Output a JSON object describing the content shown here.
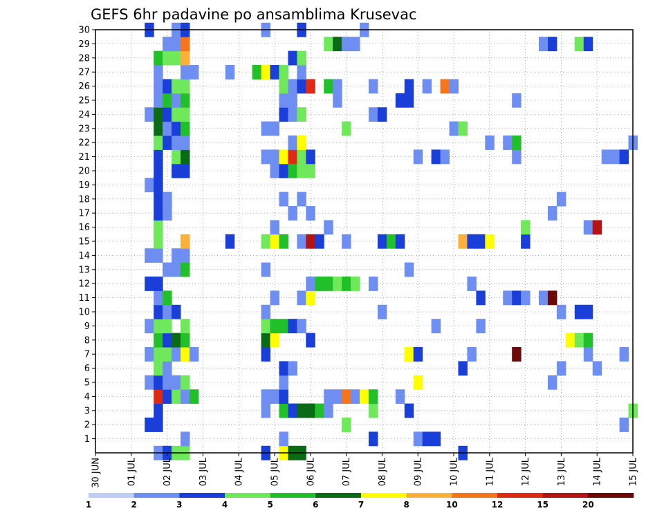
{
  "chart_data": {
    "type": "heatmap",
    "title": "GEFS 6hr padavine po ansamblima Krusevac",
    "x_tick_labels": [
      "30 JUN",
      "01 JUL",
      "02 JUL",
      "03 JUL",
      "04 JUL",
      "05 JUL",
      "06 JUL",
      "07 JUL",
      "08 JUL",
      "09 JUL",
      "10 JUL",
      "11 JUL",
      "12 JUL",
      "13 JUL",
      "14 JUL",
      "15 JUL"
    ],
    "y_tick_labels": [
      "1",
      "2",
      "3",
      "4",
      "5",
      "6",
      "7",
      "8",
      "9",
      "10",
      "11",
      "12",
      "13",
      "14",
      "15",
      "16",
      "17",
      "18",
      "19",
      "20",
      "21",
      "22",
      "23",
      "24",
      "25",
      "26",
      "27",
      "28",
      "29",
      "30"
    ],
    "x_steps_per_day": 4,
    "n_steps": 61,
    "y_range": [
      0,
      30
    ],
    "grid": true,
    "colorbar": {
      "levels": [
        1,
        2,
        3,
        4,
        5,
        6,
        7,
        8,
        10,
        12,
        15,
        20
      ],
      "labels": [
        "1",
        "2",
        "3",
        "4",
        "5",
        "6",
        "7",
        "8",
        "10",
        "12",
        "15",
        "20"
      ],
      "colors": [
        "#bfcdf6",
        "#6f8ef2",
        "#1a3fd9",
        "#6fe85c",
        "#21c02a",
        "#0b6a16",
        "#fefe00",
        "#fbb03a",
        "#f5751a",
        "#df2a14",
        "#b41313",
        "#6b0a08"
      ]
    },
    "cells": [
      [
        7,
        0,
        1
      ],
      [
        8,
        0,
        2
      ],
      [
        9,
        0,
        3
      ],
      [
        10,
        0,
        3
      ],
      [
        19,
        0,
        2
      ],
      [
        21,
        0,
        6
      ],
      [
        22,
        0,
        5
      ],
      [
        23,
        0,
        5
      ],
      [
        41,
        0,
        2
      ],
      [
        10,
        1,
        1
      ],
      [
        21,
        1,
        1
      ],
      [
        31,
        1,
        2
      ],
      [
        36,
        1,
        1
      ],
      [
        37,
        1,
        2
      ],
      [
        38,
        1,
        2
      ],
      [
        6,
        2,
        2
      ],
      [
        7,
        2,
        2
      ],
      [
        28,
        2,
        3
      ],
      [
        59,
        2,
        1
      ],
      [
        7,
        3,
        2
      ],
      [
        19,
        3,
        1
      ],
      [
        21,
        3,
        4
      ],
      [
        22,
        3,
        2
      ],
      [
        23,
        3,
        5
      ],
      [
        24,
        3,
        5
      ],
      [
        25,
        3,
        4
      ],
      [
        26,
        3,
        1
      ],
      [
        31,
        3,
        3
      ],
      [
        35,
        3,
        2
      ],
      [
        60,
        3,
        3
      ],
      [
        7,
        4,
        9
      ],
      [
        8,
        4,
        2
      ],
      [
        9,
        4,
        3
      ],
      [
        10,
        4,
        1
      ],
      [
        11,
        4,
        4
      ],
      [
        19,
        4,
        1
      ],
      [
        20,
        4,
        1
      ],
      [
        21,
        4,
        2
      ],
      [
        26,
        4,
        1
      ],
      [
        27,
        4,
        1
      ],
      [
        28,
        4,
        8
      ],
      [
        29,
        4,
        1
      ],
      [
        30,
        4,
        6
      ],
      [
        31,
        4,
        4
      ],
      [
        34,
        4,
        1
      ],
      [
        6,
        5,
        1
      ],
      [
        7,
        5,
        2
      ],
      [
        8,
        5,
        1
      ],
      [
        9,
        5,
        1
      ],
      [
        10,
        5,
        3
      ],
      [
        21,
        5,
        1
      ],
      [
        36,
        5,
        6
      ],
      [
        51,
        5,
        1
      ],
      [
        7,
        6,
        3
      ],
      [
        8,
        6,
        1
      ],
      [
        21,
        6,
        2
      ],
      [
        22,
        6,
        1
      ],
      [
        41,
        6,
        2
      ],
      [
        52,
        6,
        1
      ],
      [
        56,
        6,
        1
      ],
      [
        6,
        7,
        1
      ],
      [
        7,
        7,
        3
      ],
      [
        8,
        7,
        3
      ],
      [
        9,
        7,
        1
      ],
      [
        10,
        7,
        6
      ],
      [
        11,
        7,
        1
      ],
      [
        19,
        7,
        2
      ],
      [
        35,
        7,
        6
      ],
      [
        36,
        7,
        2
      ],
      [
        42,
        7,
        1
      ],
      [
        47,
        7,
        11
      ],
      [
        55,
        7,
        1
      ],
      [
        59,
        7,
        1
      ],
      [
        7,
        8,
        4
      ],
      [
        8,
        8,
        2
      ],
      [
        9,
        8,
        5
      ],
      [
        10,
        8,
        4
      ],
      [
        19,
        8,
        5
      ],
      [
        20,
        8,
        6
      ],
      [
        24,
        8,
        2
      ],
      [
        53,
        8,
        6
      ],
      [
        54,
        8,
        3
      ],
      [
        55,
        8,
        4
      ],
      [
        6,
        9,
        1
      ],
      [
        7,
        9,
        3
      ],
      [
        8,
        9,
        3
      ],
      [
        10,
        9,
        3
      ],
      [
        19,
        9,
        3
      ],
      [
        20,
        9,
        4
      ],
      [
        21,
        9,
        4
      ],
      [
        22,
        9,
        2
      ],
      [
        23,
        9,
        1
      ],
      [
        38,
        9,
        1
      ],
      [
        43,
        9,
        1
      ],
      [
        7,
        10,
        2
      ],
      [
        8,
        10,
        1
      ],
      [
        9,
        10,
        2
      ],
      [
        19,
        10,
        1
      ],
      [
        32,
        10,
        1
      ],
      [
        52,
        10,
        1
      ],
      [
        54,
        10,
        2
      ],
      [
        55,
        10,
        2
      ],
      [
        7,
        11,
        1
      ],
      [
        8,
        11,
        4
      ],
      [
        20,
        11,
        1
      ],
      [
        23,
        11,
        1
      ],
      [
        24,
        11,
        6
      ],
      [
        43,
        11,
        2
      ],
      [
        46,
        11,
        1
      ],
      [
        47,
        11,
        2
      ],
      [
        48,
        11,
        1
      ],
      [
        50,
        11,
        1
      ],
      [
        51,
        11,
        11
      ],
      [
        6,
        12,
        2
      ],
      [
        7,
        12,
        2
      ],
      [
        24,
        12,
        1
      ],
      [
        25,
        12,
        4
      ],
      [
        26,
        12,
        4
      ],
      [
        27,
        12,
        3
      ],
      [
        28,
        12,
        4
      ],
      [
        29,
        12,
        3
      ],
      [
        31,
        12,
        1
      ],
      [
        42,
        12,
        1
      ],
      [
        8,
        13,
        1
      ],
      [
        9,
        13,
        1
      ],
      [
        10,
        13,
        4
      ],
      [
        19,
        13,
        1
      ],
      [
        35,
        13,
        1
      ],
      [
        6,
        14,
        1
      ],
      [
        7,
        14,
        1
      ],
      [
        9,
        14,
        1
      ],
      [
        10,
        14,
        1
      ],
      [
        7,
        15,
        3
      ],
      [
        10,
        15,
        7
      ],
      [
        15,
        15,
        2
      ],
      [
        19,
        15,
        3
      ],
      [
        20,
        15,
        6
      ],
      [
        21,
        15,
        4
      ],
      [
        23,
        15,
        1
      ],
      [
        24,
        15,
        10
      ],
      [
        25,
        15,
        2
      ],
      [
        28,
        15,
        1
      ],
      [
        32,
        15,
        2
      ],
      [
        33,
        15,
        4
      ],
      [
        34,
        15,
        2
      ],
      [
        41,
        15,
        7
      ],
      [
        42,
        15,
        2
      ],
      [
        43,
        15,
        2
      ],
      [
        44,
        15,
        6
      ],
      [
        48,
        15,
        2
      ],
      [
        7,
        16,
        3
      ],
      [
        20,
        16,
        1
      ],
      [
        26,
        16,
        1
      ],
      [
        48,
        16,
        3
      ],
      [
        55,
        16,
        1
      ],
      [
        56,
        16,
        10
      ],
      [
        7,
        17,
        2
      ],
      [
        8,
        17,
        1
      ],
      [
        22,
        17,
        1
      ],
      [
        24,
        17,
        1
      ],
      [
        51,
        17,
        1
      ],
      [
        7,
        18,
        2
      ],
      [
        8,
        18,
        1
      ],
      [
        21,
        18,
        1
      ],
      [
        23,
        18,
        1
      ],
      [
        52,
        18,
        1
      ],
      [
        6,
        19,
        1
      ],
      [
        7,
        19,
        2
      ],
      [
        7,
        20,
        2
      ],
      [
        9,
        20,
        2
      ],
      [
        10,
        20,
        2
      ],
      [
        20,
        20,
        1
      ],
      [
        21,
        20,
        2
      ],
      [
        22,
        20,
        4
      ],
      [
        23,
        20,
        3
      ],
      [
        24,
        20,
        3
      ],
      [
        7,
        21,
        2
      ],
      [
        9,
        21,
        3
      ],
      [
        10,
        21,
        5
      ],
      [
        19,
        21,
        1
      ],
      [
        20,
        21,
        1
      ],
      [
        21,
        21,
        6
      ],
      [
        22,
        21,
        9
      ],
      [
        23,
        21,
        3
      ],
      [
        24,
        21,
        2
      ],
      [
        36,
        21,
        1
      ],
      [
        38,
        21,
        2
      ],
      [
        39,
        21,
        1
      ],
      [
        47,
        21,
        1
      ],
      [
        57,
        21,
        1
      ],
      [
        58,
        21,
        1
      ],
      [
        59,
        21,
        2
      ],
      [
        7,
        22,
        3
      ],
      [
        8,
        22,
        2
      ],
      [
        9,
        22,
        1
      ],
      [
        10,
        22,
        1
      ],
      [
        22,
        22,
        1
      ],
      [
        23,
        22,
        6
      ],
      [
        44,
        22,
        1
      ],
      [
        46,
        22,
        1
      ],
      [
        47,
        22,
        4
      ],
      [
        60,
        22,
        1
      ],
      [
        7,
        23,
        5
      ],
      [
        8,
        23,
        1
      ],
      [
        9,
        23,
        2
      ],
      [
        10,
        23,
        4
      ],
      [
        19,
        23,
        1
      ],
      [
        20,
        23,
        1
      ],
      [
        28,
        23,
        3
      ],
      [
        40,
        23,
        1
      ],
      [
        41,
        23,
        3
      ],
      [
        6,
        24,
        1
      ],
      [
        7,
        24,
        5
      ],
      [
        8,
        24,
        2
      ],
      [
        9,
        24,
        3
      ],
      [
        10,
        24,
        3
      ],
      [
        21,
        24,
        2
      ],
      [
        22,
        24,
        1
      ],
      [
        23,
        24,
        3
      ],
      [
        31,
        24,
        1
      ],
      [
        32,
        24,
        2
      ],
      [
        7,
        25,
        1
      ],
      [
        8,
        25,
        4
      ],
      [
        9,
        25,
        1
      ],
      [
        10,
        25,
        4
      ],
      [
        21,
        25,
        1
      ],
      [
        22,
        25,
        1
      ],
      [
        27,
        25,
        1
      ],
      [
        34,
        25,
        2
      ],
      [
        35,
        25,
        2
      ],
      [
        47,
        25,
        1
      ],
      [
        7,
        26,
        1
      ],
      [
        8,
        26,
        2
      ],
      [
        9,
        26,
        3
      ],
      [
        10,
        26,
        3
      ],
      [
        21,
        26,
        3
      ],
      [
        22,
        26,
        1
      ],
      [
        23,
        26,
        2
      ],
      [
        24,
        26,
        9
      ],
      [
        26,
        26,
        4
      ],
      [
        27,
        26,
        1
      ],
      [
        31,
        26,
        1
      ],
      [
        35,
        26,
        2
      ],
      [
        37,
        26,
        1
      ],
      [
        39,
        26,
        8
      ],
      [
        40,
        26,
        1
      ],
      [
        7,
        27,
        1
      ],
      [
        10,
        27,
        1
      ],
      [
        11,
        27,
        1
      ],
      [
        15,
        27,
        1
      ],
      [
        18,
        27,
        4
      ],
      [
        19,
        27,
        6
      ],
      [
        20,
        27,
        2
      ],
      [
        21,
        27,
        3
      ],
      [
        23,
        27,
        1
      ],
      [
        7,
        28,
        4
      ],
      [
        8,
        28,
        3
      ],
      [
        9,
        28,
        3
      ],
      [
        10,
        28,
        7
      ],
      [
        22,
        28,
        2
      ],
      [
        23,
        28,
        3
      ],
      [
        8,
        29,
        1
      ],
      [
        9,
        29,
        1
      ],
      [
        10,
        29,
        8
      ],
      [
        26,
        29,
        3
      ],
      [
        27,
        29,
        5
      ],
      [
        28,
        29,
        1
      ],
      [
        29,
        29,
        1
      ],
      [
        50,
        29,
        1
      ],
      [
        51,
        29,
        2
      ],
      [
        54,
        29,
        3
      ],
      [
        55,
        29,
        2
      ],
      [
        6,
        30,
        2
      ],
      [
        9,
        30,
        1
      ],
      [
        10,
        30,
        2
      ],
      [
        19,
        30,
        1
      ],
      [
        23,
        30,
        2
      ],
      [
        30,
        30,
        1
      ]
    ]
  }
}
